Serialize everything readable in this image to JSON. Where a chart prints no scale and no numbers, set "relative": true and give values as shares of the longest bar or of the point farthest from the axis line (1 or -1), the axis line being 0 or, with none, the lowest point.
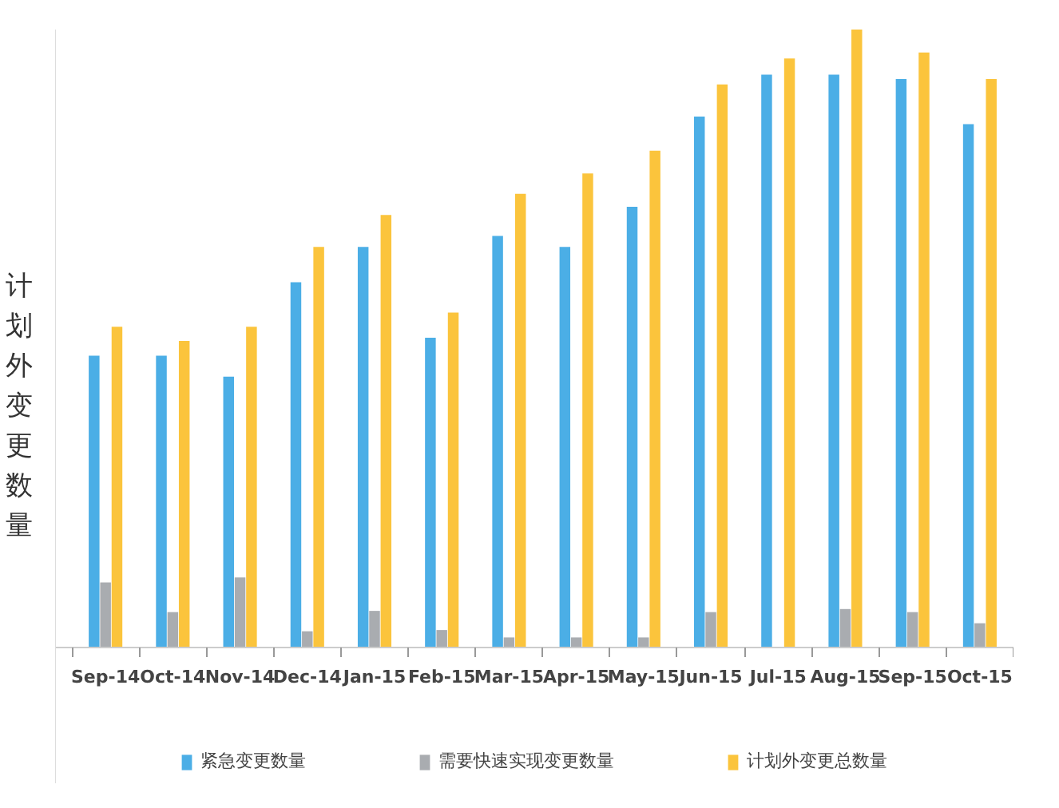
{
  "chart_data": {
    "type": "bar",
    "relative": true,
    "ylabel": "计划外变更数量",
    "categories": [
      "Sep-14",
      "Oct-14",
      "Nov-14",
      "Dec-14",
      "Jan-15",
      "Feb-15",
      "Mar-15",
      "Apr-15",
      "May-15",
      "Jun-15",
      "Jul-15",
      "Aug-15",
      "Sep-15",
      "Oct-15"
    ],
    "series": [
      {
        "name": "紧急变更数量",
        "color": "#4baee6",
        "values": [
          0.472,
          0.472,
          0.438,
          0.591,
          0.648,
          0.501,
          0.666,
          0.648,
          0.713,
          0.859,
          0.927,
          0.927,
          0.92,
          0.847
        ]
      },
      {
        "name": "需要快速实现变更数量",
        "color": "#a9acb0",
        "values": [
          0.105,
          0.057,
          0.113,
          0.026,
          0.059,
          0.028,
          0.016,
          0.016,
          0.016,
          0.057,
          0,
          0.062,
          0.057,
          0.039
        ]
      },
      {
        "name": "计划外变更总数量",
        "color": "#fbc43c",
        "values": [
          0.519,
          0.496,
          0.519,
          0.648,
          0.7,
          0.542,
          0.734,
          0.767,
          0.804,
          0.911,
          0.953,
          1,
          0.963,
          0.92
        ]
      }
    ],
    "grid": false,
    "legend": "bottom"
  }
}
